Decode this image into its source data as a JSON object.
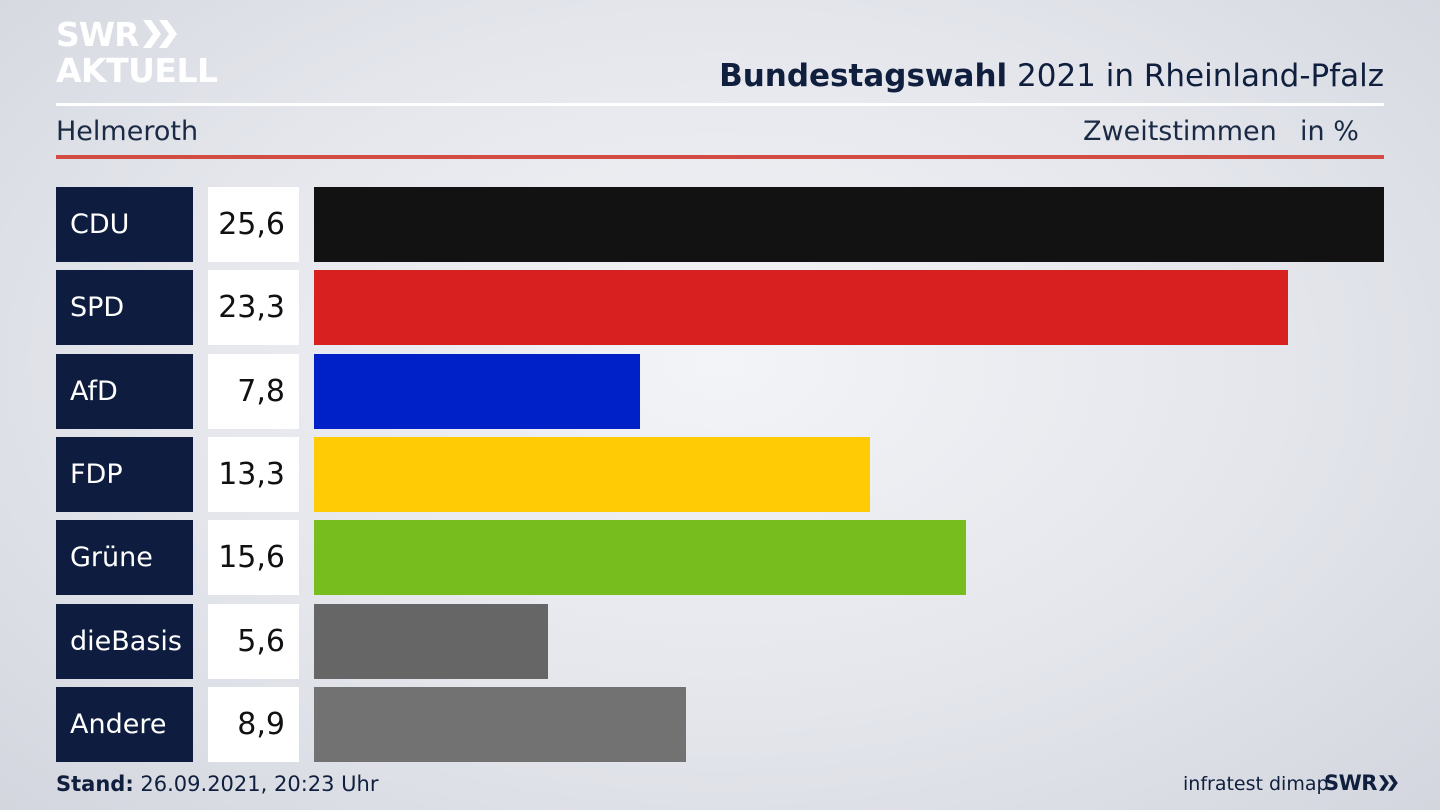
{
  "logo": {
    "line1": "SWR",
    "line2": "AKTUELL"
  },
  "header": {
    "title_bold": "Bundestagswahl",
    "title_rest": " 2021 in Rheinland-Pfalz",
    "location": "Helmeroth",
    "vote_type": "Zweitstimmen",
    "unit": "in %"
  },
  "chart_data": {
    "type": "bar",
    "orientation": "horizontal",
    "categories": [
      "CDU",
      "SPD",
      "AfD",
      "FDP",
      "Grüne",
      "dieBasis",
      "Andere"
    ],
    "values": [
      25.6,
      23.3,
      7.8,
      13.3,
      15.6,
      5.6,
      8.9
    ],
    "value_labels": [
      "25,6",
      "23,3",
      "7,8",
      "13,3",
      "15,6",
      "5,6",
      "8,9"
    ],
    "colors": [
      "#121212",
      "#d82020",
      "#0020c8",
      "#fecb05",
      "#77bd1e",
      "#666666",
      "#727272"
    ],
    "xlim": [
      0,
      25.6
    ]
  },
  "footer": {
    "stand_label": "Stand:",
    "stand_value": " 26.09.2021, 20:23 Uhr",
    "source": "infratest dimap",
    "logo": "SWR"
  }
}
